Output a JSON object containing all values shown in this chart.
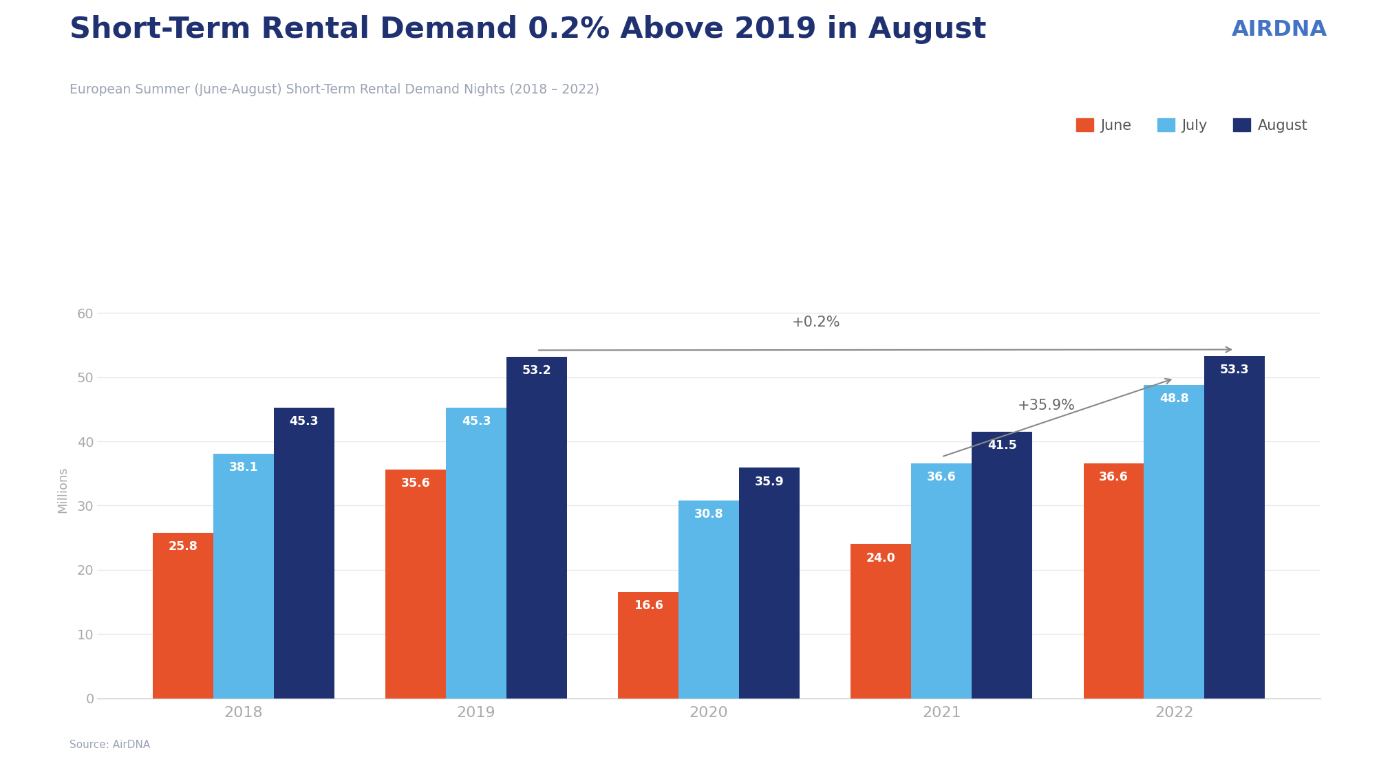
{
  "title": "Short-Term Rental Demand 0.2% Above 2019 in August",
  "subtitle": "European Summer (June-August) Short-Term Rental Demand Nights (2018 – 2022)",
  "source": "Source: AirDNA",
  "logo_text": "AIRDNA",
  "ylabel": "Millions",
  "years": [
    2018,
    2019,
    2020,
    2021,
    2022
  ],
  "june_values": [
    25.8,
    35.6,
    16.6,
    24.0,
    36.6
  ],
  "july_values": [
    38.1,
    45.3,
    30.8,
    36.6,
    48.8
  ],
  "august_values": [
    45.3,
    53.2,
    35.9,
    41.5,
    53.3
  ],
  "june_color": "#E8522A",
  "july_color": "#5BB8E8",
  "august_color": "#1F3170",
  "bar_width": 0.26,
  "ylim": [
    0,
    65
  ],
  "yticks": [
    0,
    10,
    20,
    30,
    40,
    50,
    60
  ],
  "title_color": "#1F3170",
  "subtitle_color": "#9BA3B2",
  "source_color": "#9BA3B2",
  "logo_color": "#4472C4",
  "tick_label_color": "#AAAAAA",
  "annotation_color": "#666666",
  "arrow_color": "#888888",
  "legend_labels": [
    "June",
    "July",
    "August"
  ],
  "legend_colors": [
    "#E8522A",
    "#5BB8E8",
    "#1F3170"
  ],
  "annotation_02": "+0.2%",
  "annotation_359": "+35.9%",
  "background_color": "#FFFFFF",
  "grid_color": "#E8E8E8"
}
